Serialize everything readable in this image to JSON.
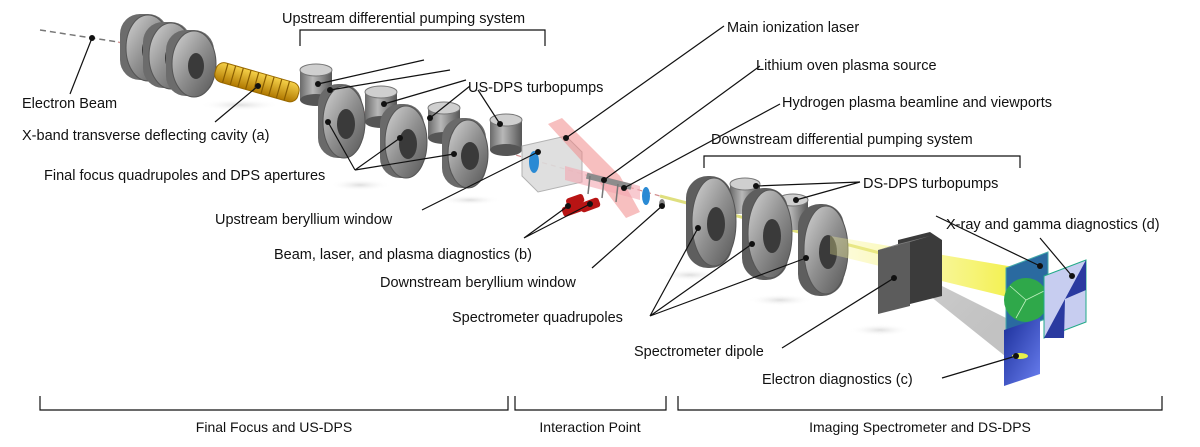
{
  "labels": {
    "electron_beam": "Electron Beam",
    "xband_cavity": "X-band transverse deflecting cavity (a)",
    "final_focus": "Final focus quadrupoles and DPS apertures",
    "us_dps_system": "Upstream differential pumping system",
    "us_dps_turbopumps": "US-DPS turbopumps",
    "upstream_be_window": "Upstream beryllium window",
    "diagnostics_b": "Beam, laser, and plasma diagnostics (b)",
    "downstream_be_window": "Downstream beryllium window",
    "main_laser": "Main ionization laser",
    "lithium_oven": "Lithium oven plasma source",
    "hydrogen_beamline": "Hydrogen plasma beamline and viewports",
    "ds_dps_system": "Downstream differential pumping  system",
    "ds_dps_turbopumps": "DS-DPS turbopumps",
    "spectrometer_quads": "Spectrometer quadrupoles",
    "spectrometer_dipole": "Spectrometer dipole",
    "xray_gamma": "X-ray and gamma diagnostics (d)",
    "electron_diag": "Electron diagnostics (c)"
  },
  "sections": {
    "final_focus_usdps": "Final Focus and US-DPS",
    "interaction_point": "Interaction Point",
    "imaging_spectrometer": "Imaging Spectrometer and DS-DPS"
  },
  "colors": {
    "cavity": "#e0a100",
    "ring": "#8a8a8a",
    "laser": "#f08a8a",
    "gamma": "#f2ef5a",
    "magnet": "#454545",
    "screen_blue": "#3b57c8",
    "screen_green": "#2fa84a",
    "window": "#2a8ad4",
    "diag_red": "#b81414"
  }
}
